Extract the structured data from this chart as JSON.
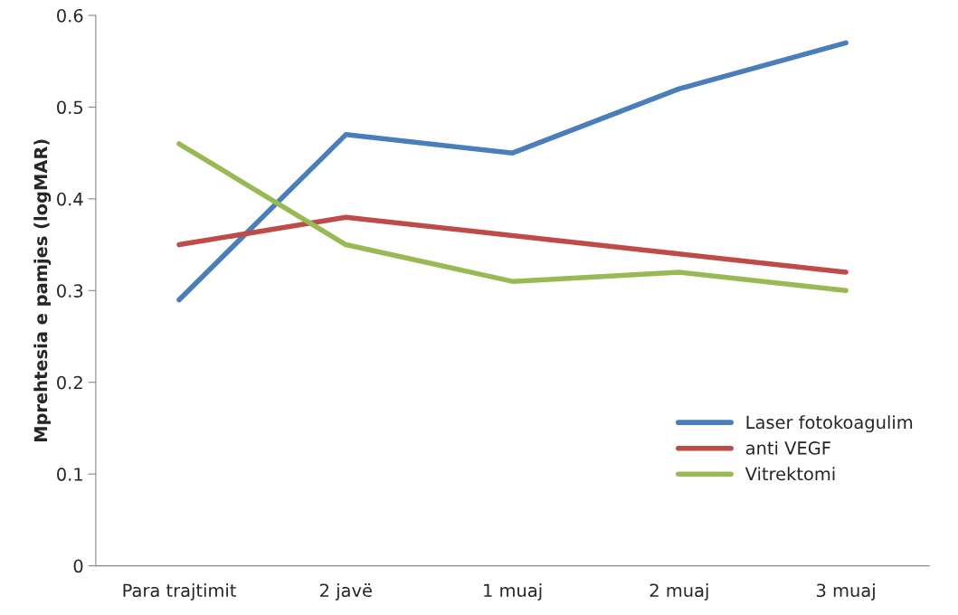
{
  "chart_data": {
    "type": "line",
    "ylabel": "Mprehtesia e pamjes (logMAR)",
    "categories": [
      "Para trajtimit",
      "2 javë",
      "1 muaj",
      "2 muaj",
      "3 muaj"
    ],
    "series": [
      {
        "name": "Laser fotokoagulim",
        "color": "#4a7ebb",
        "values": [
          0.29,
          0.47,
          0.45,
          0.52,
          0.57
        ]
      },
      {
        "name": "anti VEGF",
        "color": "#be4b48",
        "values": [
          0.35,
          0.38,
          0.36,
          0.34,
          0.32
        ]
      },
      {
        "name": "Vitrektomi",
        "color": "#98b954",
        "values": [
          0.46,
          0.35,
          0.31,
          0.32,
          0.3
        ]
      }
    ],
    "ylim": [
      0,
      0.6
    ],
    "yticks": [
      0,
      0.1,
      0.2,
      0.3,
      0.4,
      0.5,
      0.6
    ],
    "grid": false,
    "legend": "bottom right",
    "marker": "none",
    "line_style": "solid"
  }
}
